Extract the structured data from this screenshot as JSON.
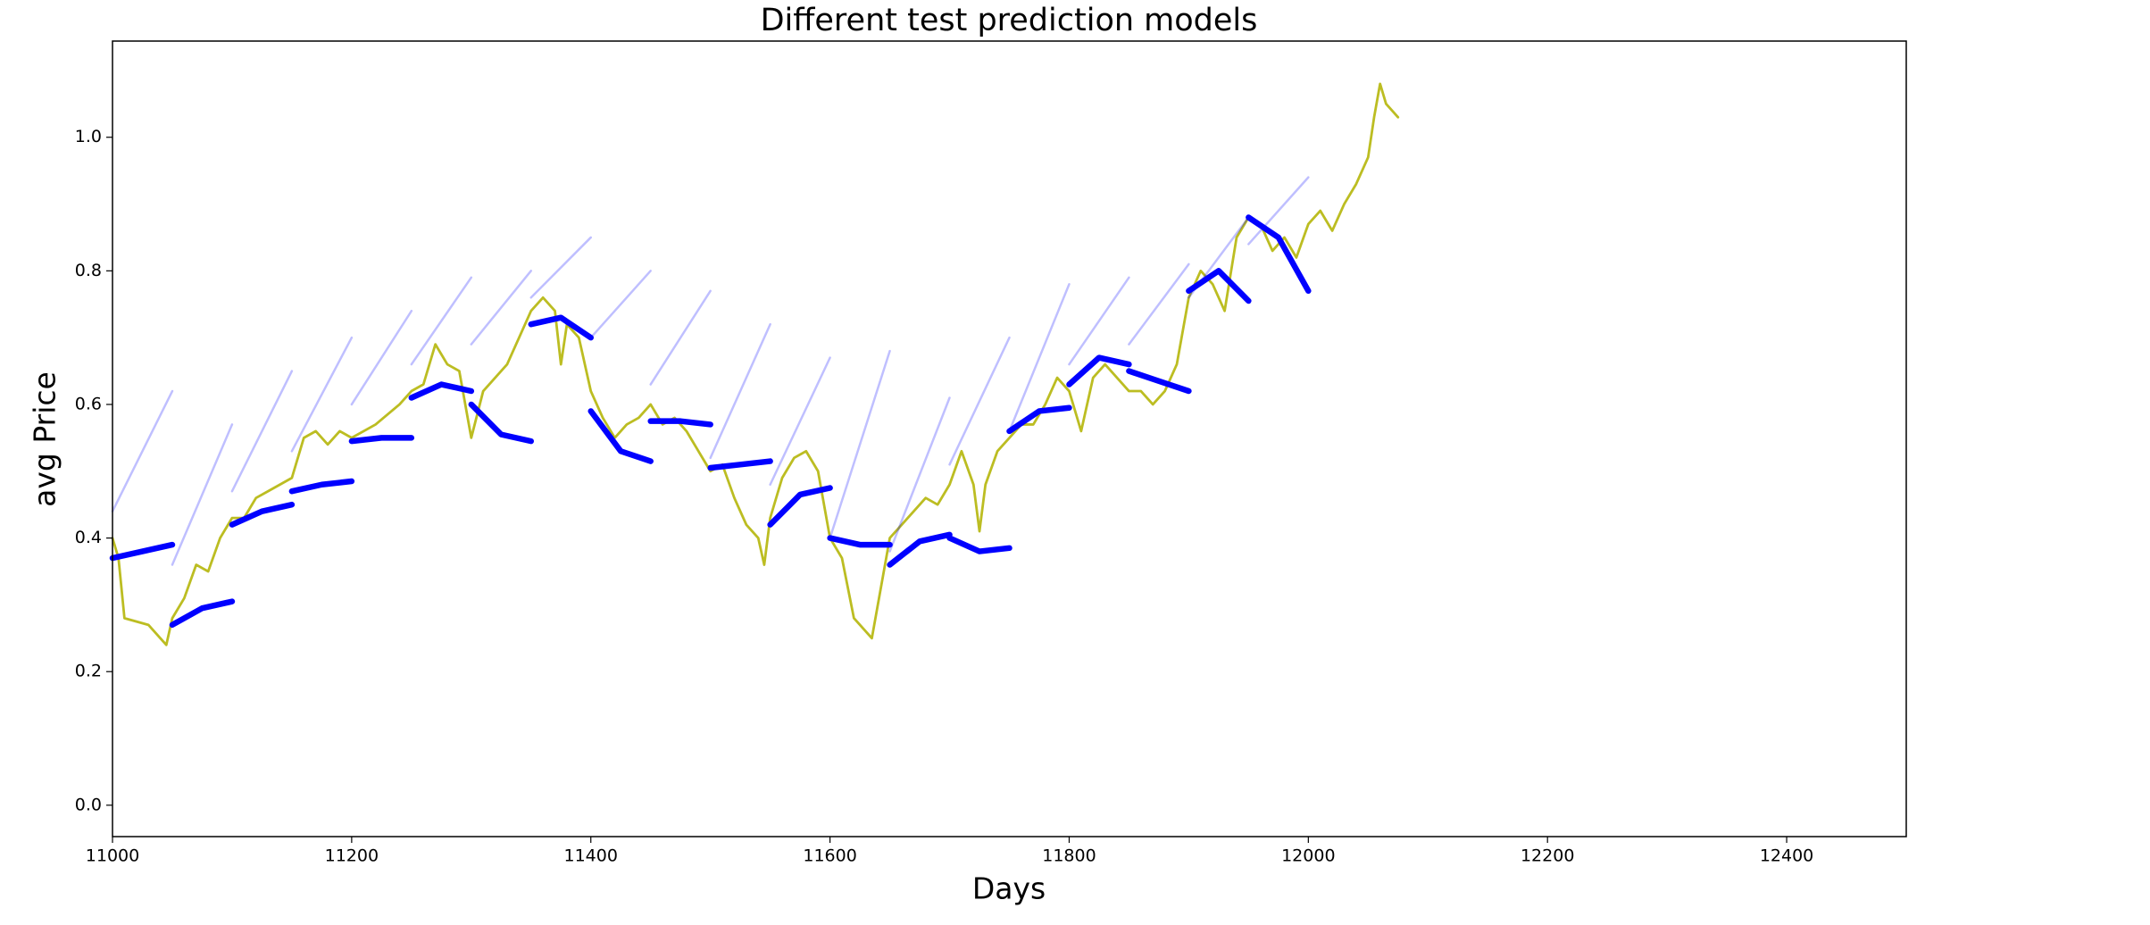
{
  "chart_data": {
    "type": "line",
    "title": "Different test prediction models",
    "x_label": "Days",
    "y_label": "avg Price",
    "xlim": [
      11000,
      12500
    ],
    "ylim": [
      -0.047,
      1.144
    ],
    "xticks": [
      11000,
      11200,
      11400,
      11600,
      11800,
      12000,
      12200,
      12400
    ],
    "yticks": [
      {
        "value": 0,
        "label": "0.0"
      },
      0.2,
      0.4,
      0.6,
      0.8,
      {
        "value": 1,
        "label": "1.0"
      }
    ],
    "series": [
      {
        "color": "#bcbd22",
        "alpha": 1,
        "x": [
          11000,
          11005,
          11010,
          11020,
          11030,
          11040,
          11045,
          11050,
          11060,
          11070,
          11080,
          11090,
          11100,
          11110,
          11120,
          11130,
          11140,
          11150,
          11160,
          11170,
          11180,
          11190,
          11200,
          11220,
          11240,
          11250,
          11260,
          11270,
          11280,
          11290,
          11300,
          11310,
          11320,
          11330,
          11340,
          11350,
          11360,
          11370,
          11375,
          11380,
          11390,
          11400,
          11410,
          11420,
          11430,
          11440,
          11450,
          11460,
          11470,
          11480,
          11490,
          11500,
          11510,
          11520,
          11530,
          11540,
          11545,
          11550,
          11560,
          11570,
          11580,
          11590,
          11600,
          11610,
          11620,
          11630,
          11635,
          11640,
          11650,
          11660,
          11670,
          11680,
          11690,
          11700,
          11710,
          11720,
          11725,
          11730,
          11740,
          11750,
          11760,
          11770,
          11780,
          11790,
          11800,
          11810,
          11820,
          11830,
          11840,
          11850,
          11860,
          11870,
          11880,
          11890,
          11900,
          11910,
          11920,
          11930,
          11940,
          11950,
          11960,
          11970,
          11980,
          11990,
          12000,
          12010,
          12020,
          12030,
          12040,
          12050,
          12055,
          12060,
          12065,
          12075
        ],
        "values": [
          0.4,
          0.37,
          0.28,
          0.275,
          0.27,
          0.25,
          0.24,
          0.28,
          0.31,
          0.36,
          0.35,
          0.4,
          0.43,
          0.43,
          0.46,
          0.47,
          0.48,
          0.49,
          0.55,
          0.56,
          0.54,
          0.56,
          0.55,
          0.57,
          0.6,
          0.62,
          0.63,
          0.69,
          0.66,
          0.65,
          0.55,
          0.62,
          0.64,
          0.66,
          0.7,
          0.74,
          0.76,
          0.74,
          0.66,
          0.72,
          0.7,
          0.62,
          0.58,
          0.55,
          0.57,
          0.58,
          0.6,
          0.57,
          0.58,
          0.56,
          0.53,
          0.5,
          0.51,
          0.46,
          0.42,
          0.4,
          0.36,
          0.43,
          0.49,
          0.52,
          0.53,
          0.5,
          0.4,
          0.37,
          0.28,
          0.26,
          0.25,
          0.3,
          0.4,
          0.42,
          0.44,
          0.46,
          0.45,
          0.48,
          0.53,
          0.48,
          0.41,
          0.48,
          0.53,
          0.55,
          0.57,
          0.57,
          0.6,
          0.64,
          0.62,
          0.56,
          0.64,
          0.66,
          0.64,
          0.62,
          0.62,
          0.6,
          0.62,
          0.66,
          0.76,
          0.8,
          0.78,
          0.74,
          0.85,
          0.88,
          0.87,
          0.83,
          0.85,
          0.82,
          0.87,
          0.89,
          0.86,
          0.9,
          0.93,
          0.97,
          1.03,
          1.08,
          1.05,
          1.03
        ]
      },
      {
        "color": "#0000ff",
        "alpha": 0.25,
        "x": [
          11000,
          11050
        ],
        "values": [
          0.44,
          0.62
        ]
      },
      {
        "color": "#0000ff",
        "alpha": 0.25,
        "x": [
          11050,
          11100
        ],
        "values": [
          0.36,
          0.57
        ]
      },
      {
        "color": "#0000ff",
        "alpha": 0.25,
        "x": [
          11100,
          11150
        ],
        "values": [
          0.47,
          0.65
        ]
      },
      {
        "color": "#0000ff",
        "alpha": 0.25,
        "x": [
          11150,
          11200
        ],
        "values": [
          0.53,
          0.7
        ]
      },
      {
        "color": "#0000ff",
        "alpha": 0.25,
        "x": [
          11200,
          11250
        ],
        "values": [
          0.6,
          0.74
        ]
      },
      {
        "color": "#0000ff",
        "alpha": 0.25,
        "x": [
          11250,
          11300
        ],
        "values": [
          0.66,
          0.79
        ]
      },
      {
        "color": "#0000ff",
        "alpha": 0.25,
        "x": [
          11300,
          11350
        ],
        "values": [
          0.69,
          0.8
        ]
      },
      {
        "color": "#0000ff",
        "alpha": 0.25,
        "x": [
          11350,
          11400
        ],
        "values": [
          0.76,
          0.85
        ]
      },
      {
        "color": "#0000ff",
        "alpha": 0.25,
        "x": [
          11400,
          11450
        ],
        "values": [
          0.7,
          0.8
        ]
      },
      {
        "color": "#0000ff",
        "alpha": 0.25,
        "x": [
          11450,
          11500
        ],
        "values": [
          0.63,
          0.77
        ]
      },
      {
        "color": "#0000ff",
        "alpha": 0.25,
        "x": [
          11500,
          11550
        ],
        "values": [
          0.52,
          0.72
        ]
      },
      {
        "color": "#0000ff",
        "alpha": 0.25,
        "x": [
          11550,
          11600
        ],
        "values": [
          0.48,
          0.67
        ]
      },
      {
        "color": "#0000ff",
        "alpha": 0.25,
        "x": [
          11600,
          11650
        ],
        "values": [
          0.4,
          0.68
        ]
      },
      {
        "color": "#0000ff",
        "alpha": 0.25,
        "x": [
          11650,
          11700
        ],
        "values": [
          0.38,
          0.61
        ]
      },
      {
        "color": "#0000ff",
        "alpha": 0.25,
        "x": [
          11700,
          11750
        ],
        "values": [
          0.51,
          0.7
        ]
      },
      {
        "color": "#0000ff",
        "alpha": 0.25,
        "x": [
          11750,
          11800
        ],
        "values": [
          0.56,
          0.78
        ]
      },
      {
        "color": "#0000ff",
        "alpha": 0.25,
        "x": [
          11800,
          11850
        ],
        "values": [
          0.66,
          0.79
        ]
      },
      {
        "color": "#0000ff",
        "alpha": 0.25,
        "x": [
          11850,
          11900
        ],
        "values": [
          0.69,
          0.81
        ]
      },
      {
        "color": "#0000ff",
        "alpha": 0.25,
        "x": [
          11900,
          11950
        ],
        "values": [
          0.76,
          0.88
        ]
      },
      {
        "color": "#0000ff",
        "alpha": 0.25,
        "x": [
          11950,
          12000
        ],
        "values": [
          0.84,
          0.94
        ]
      },
      {
        "color": "#0000ff",
        "alpha": 1,
        "x": [
          11000,
          11025,
          11050
        ],
        "values": [
          0.37,
          0.38,
          0.39
        ]
      },
      {
        "color": "#0000ff",
        "alpha": 1,
        "x": [
          11050,
          11075,
          11100
        ],
        "values": [
          0.27,
          0.295,
          0.305
        ]
      },
      {
        "color": "#0000ff",
        "alpha": 1,
        "x": [
          11100,
          11125,
          11150
        ],
        "values": [
          0.42,
          0.44,
          0.45
        ]
      },
      {
        "color": "#0000ff",
        "alpha": 1,
        "x": [
          11150,
          11175,
          11200
        ],
        "values": [
          0.47,
          0.48,
          0.485
        ]
      },
      {
        "color": "#0000ff",
        "alpha": 1,
        "x": [
          11200,
          11225,
          11250
        ],
        "values": [
          0.545,
          0.55,
          0.55
        ]
      },
      {
        "color": "#0000ff",
        "alpha": 1,
        "x": [
          11250,
          11275,
          11300
        ],
        "values": [
          0.61,
          0.63,
          0.62
        ]
      },
      {
        "color": "#0000ff",
        "alpha": 1,
        "x": [
          11300,
          11325,
          11350
        ],
        "values": [
          0.6,
          0.555,
          0.545
        ]
      },
      {
        "color": "#0000ff",
        "alpha": 1,
        "x": [
          11350,
          11375,
          11400
        ],
        "values": [
          0.72,
          0.73,
          0.7
        ]
      },
      {
        "color": "#0000ff",
        "alpha": 1,
        "x": [
          11400,
          11425,
          11450
        ],
        "values": [
          0.59,
          0.53,
          0.515
        ]
      },
      {
        "color": "#0000ff",
        "alpha": 1,
        "x": [
          11450,
          11475,
          11500
        ],
        "values": [
          0.575,
          0.575,
          0.57
        ]
      },
      {
        "color": "#0000ff",
        "alpha": 1,
        "x": [
          11500,
          11525,
          11550
        ],
        "values": [
          0.505,
          0.51,
          0.515
        ]
      },
      {
        "color": "#0000ff",
        "alpha": 1,
        "x": [
          11550,
          11575,
          11600
        ],
        "values": [
          0.42,
          0.465,
          0.475
        ]
      },
      {
        "color": "#0000ff",
        "alpha": 1,
        "x": [
          11600,
          11625,
          11650
        ],
        "values": [
          0.4,
          0.39,
          0.39
        ]
      },
      {
        "color": "#0000ff",
        "alpha": 1,
        "x": [
          11650,
          11675,
          11700
        ],
        "values": [
          0.36,
          0.395,
          0.405
        ]
      },
      {
        "color": "#0000ff",
        "alpha": 1,
        "x": [
          11700,
          11725,
          11750
        ],
        "values": [
          0.4,
          0.38,
          0.385
        ]
      },
      {
        "color": "#0000ff",
        "alpha": 1,
        "x": [
          11750,
          11775,
          11800
        ],
        "values": [
          0.56,
          0.59,
          0.595
        ]
      },
      {
        "color": "#0000ff",
        "alpha": 1,
        "x": [
          11800,
          11825,
          11850
        ],
        "values": [
          0.63,
          0.67,
          0.66
        ]
      },
      {
        "color": "#0000ff",
        "alpha": 1,
        "x": [
          11850,
          11875,
          11900
        ],
        "values": [
          0.65,
          0.635,
          0.62
        ]
      },
      {
        "color": "#0000ff",
        "alpha": 1,
        "x": [
          11900,
          11925,
          11950
        ],
        "values": [
          0.77,
          0.8,
          0.755
        ]
      },
      {
        "color": "#0000ff",
        "alpha": 1,
        "x": [
          11950,
          11975,
          12000
        ],
        "values": [
          0.88,
          0.85,
          0.77
        ]
      }
    ]
  }
}
